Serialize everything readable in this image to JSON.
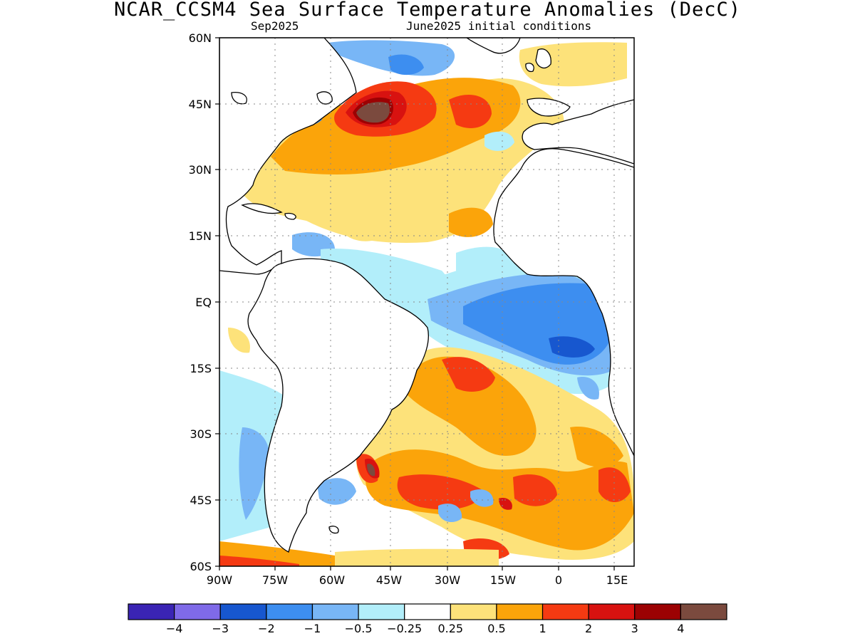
{
  "map": {
    "title": "NCAR_CCSM4 Sea Surface Temperature Anomalies (DecC)",
    "subtitle_left": "Sep2025",
    "subtitle_right": "June2025 initial conditions",
    "lat_labels": [
      "60N",
      "45N",
      "30N",
      "15N",
      "EQ",
      "15S",
      "30S",
      "45S",
      "60S"
    ],
    "lon_labels": [
      "90W",
      "75W",
      "60W",
      "45W",
      "30W",
      "15W",
      "0",
      "15E"
    ],
    "region": "Atlantic Ocean",
    "lon_range": [
      -90,
      20
    ],
    "lat_range": [
      -60,
      60
    ]
  },
  "colorbar": {
    "colors": [
      "#3a24b4",
      "#7f6ae8",
      "#1757cf",
      "#3d8ef0",
      "#78b6f6",
      "#b2eefa",
      "#ffffff",
      "#fde27a",
      "#fba40a",
      "#f53a12",
      "#d81210",
      "#9c0203",
      "#7b4a3e"
    ],
    "labels": [
      "−4",
      "−3",
      "−2",
      "−1",
      "−0.5",
      "−0.25",
      "0.25",
      "0.5",
      "1",
      "2",
      "3",
      "4"
    ]
  }
}
